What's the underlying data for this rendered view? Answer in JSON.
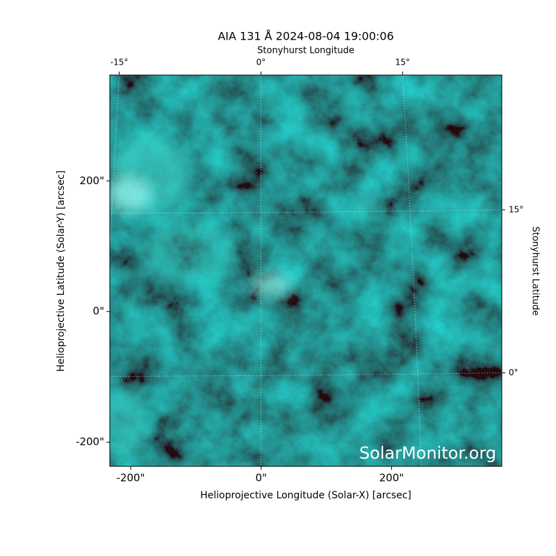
{
  "chart_data": {
    "type": "image",
    "title": "AIA 131 Å 2024-08-04 19:00:06",
    "xlabel": "Helioprojective Longitude (Solar-X) [arcsec]",
    "ylabel": "Helioprojective Latitude (Solar-Y) [arcsec]",
    "top_xlabel": "Stonyhurst Longitude",
    "right_ylabel": "Stonyhurst Latitude",
    "watermark": "SolarMonitor.org",
    "xlim": [
      -232,
      369
    ],
    "ylim": [
      -237,
      362
    ],
    "xticks": [
      {
        "value": -200,
        "label": "-200\""
      },
      {
        "value": 0,
        "label": "0\""
      },
      {
        "value": 200,
        "label": "200\""
      }
    ],
    "yticks": [
      {
        "value": -200,
        "label": "-200\""
      },
      {
        "value": 0,
        "label": "0\""
      },
      {
        "value": 200,
        "label": "200\""
      }
    ],
    "top_xlim": [
      -16,
      25.5
    ],
    "top_xticks": [
      {
        "value": -15,
        "label": "-15°"
      },
      {
        "value": 0,
        "label": "0°"
      },
      {
        "value": 15,
        "label": "15°"
      }
    ],
    "right_ylim": [
      -8.6,
      27.4
    ],
    "right_yticks": [
      {
        "value": 0,
        "label": "0°"
      },
      {
        "value": 15,
        "label": "15°"
      }
    ],
    "grid": true
  }
}
